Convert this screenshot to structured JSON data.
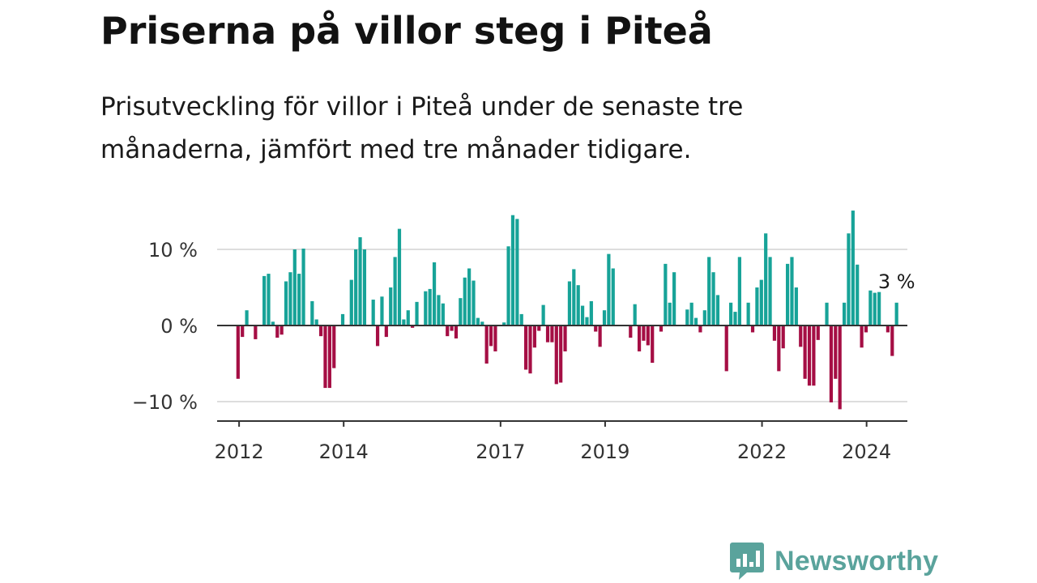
{
  "header": {
    "title": "Priserna på villor steg i Piteå",
    "subtitle": "Prisutveckling för villor i Piteå under de senaste tre månaderna, jämfört med tre månader tidigare."
  },
  "brand": {
    "name": "Newsworthy",
    "icon": "bar-chart-speech-bubble-icon"
  },
  "colors": {
    "positive": "#17a398",
    "negative": "#a50e44",
    "grid": "#dddddd",
    "axis": "#333333",
    "brand": "#5aa39c"
  },
  "chart_data": {
    "type": "bar",
    "ylabel": "",
    "xlabel": "",
    "ylim": [
      -13,
      17
    ],
    "yticks": [
      -10,
      0,
      10
    ],
    "ytick_labels": [
      "−10 %",
      "0 %",
      "10 %"
    ],
    "xticks": [
      2012,
      2014,
      2017,
      2019,
      2022,
      2024
    ],
    "xlim": [
      2011.58,
      2024.78
    ],
    "start": 2011.98,
    "step": 0.0834,
    "values": [
      -7,
      -1.5,
      2,
      0,
      -1.8,
      0,
      6.5,
      6.8,
      0.5,
      -1.6,
      -1.2,
      5.8,
      7,
      10,
      6.8,
      10.1,
      0,
      3.2,
      0.8,
      -1.4,
      -8.2,
      -8.2,
      -5.6,
      0,
      1.5,
      0,
      6,
      10,
      11.6,
      10,
      0,
      3.4,
      -2.7,
      3.8,
      -1.5,
      5,
      9,
      12.7,
      0.8,
      2,
      -0.3,
      3.1,
      0,
      4.5,
      4.8,
      8.3,
      4,
      2.9,
      -1.4,
      -0.7,
      -1.7,
      3.6,
      6.3,
      7.5,
      5.9,
      1,
      0.5,
      -5,
      -2.7,
      -3.4,
      0,
      0.4,
      10.4,
      14.5,
      14,
      1.5,
      -5.8,
      -6.3,
      -2.9,
      -0.7,
      2.7,
      -2.2,
      -2.2,
      -7.7,
      -7.5,
      -3.4,
      5.8,
      7.4,
      5.3,
      2.6,
      1.1,
      3.2,
      -0.8,
      -2.8,
      2,
      9.4,
      7.5,
      0,
      0,
      0,
      -1.6,
      2.8,
      -3.4,
      -2,
      -2.6,
      -4.9,
      0,
      -0.8,
      8.1,
      3,
      7,
      0,
      0,
      2.1,
      3,
      1,
      -0.9,
      2,
      9,
      7,
      4,
      0,
      -6,
      3,
      1.8,
      9,
      0,
      3,
      -0.9,
      5,
      6,
      12.1,
      9,
      -2,
      -6,
      -3,
      8.1,
      9,
      5,
      -2.8,
      -7,
      -7.9,
      -7.9,
      -1.9,
      0,
      3,
      -10.1,
      -7,
      -11,
      3,
      12.1,
      15.1,
      8,
      -2.9,
      -0.9,
      4.6,
      4.3,
      4.4,
      0,
      -0.9,
      -4,
      3
    ],
    "last_label": "3 %"
  }
}
